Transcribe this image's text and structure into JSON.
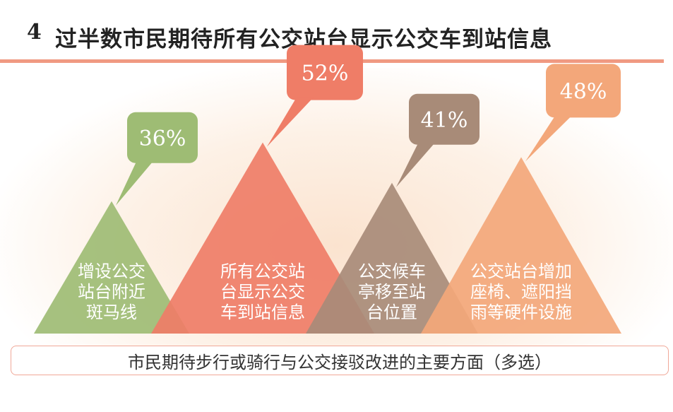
{
  "header": {
    "number": "4",
    "title": "过半数市民期待所有公交站台显示公交车到站信息"
  },
  "chart_data": {
    "type": "bar",
    "unit": "%",
    "categories": [
      "增设公交站台附近斑马线",
      "所有公交站台显示公交车到站信息",
      "公交候车亭移至站台位置",
      "公交站台增加座椅、遮阳挡雨等硬件设施"
    ],
    "category_lines": [
      [
        "增设公交",
        "站台附近",
        "斑马线"
      ],
      [
        "所有公交站",
        "台显示公交",
        "车到站信息"
      ],
      [
        "公交候车",
        "亭移至站",
        "台位置"
      ],
      [
        "公交站台增加",
        "座椅、遮阳挡",
        "雨等硬件设施"
      ]
    ],
    "values": [
      36,
      52,
      41,
      48
    ],
    "value_labels": [
      "36%",
      "52%",
      "41%",
      "48%"
    ],
    "colors": [
      "#9ebc74",
      "#ef7d67",
      "#a88b78",
      "#f3a77a"
    ],
    "bubble_colors": [
      "#9ebc74",
      "#ef7d67",
      "#a88b78",
      "#f3a77a"
    ],
    "caption": "市民期待步行或骑行与公交接驳改进的主要方面（多选）"
  }
}
